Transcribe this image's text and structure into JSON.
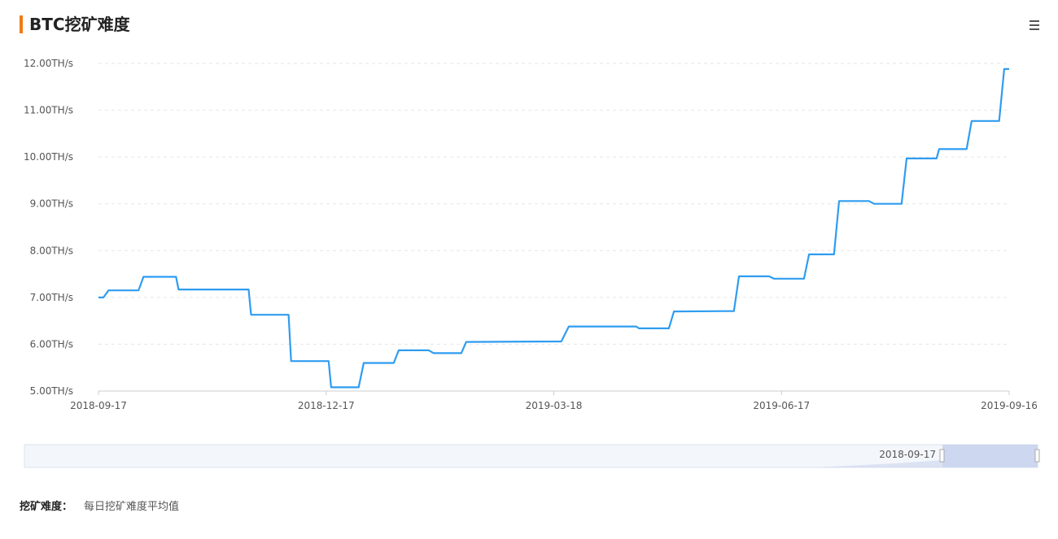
{
  "chart_data": {
    "type": "line",
    "title": "BTC挖矿难度",
    "x": [
      "2018-09-17",
      "2018-09-19",
      "2018-09-21",
      "2018-10-03",
      "2018-10-05",
      "2018-10-18",
      "2018-10-19",
      "2018-11-16",
      "2018-11-17",
      "2018-12-02",
      "2018-12-03",
      "2018-12-18",
      "2018-12-19",
      "2018-12-30",
      "2019-01-01",
      "2019-01-13",
      "2019-01-15",
      "2019-01-27",
      "2019-01-29",
      "2019-02-09",
      "2019-02-11",
      "2019-03-21",
      "2019-03-24",
      "2019-04-20",
      "2019-04-21",
      "2019-05-03",
      "2019-05-05",
      "2019-05-29",
      "2019-05-31",
      "2019-06-12",
      "2019-06-14",
      "2019-06-26",
      "2019-06-28",
      "2019-07-08",
      "2019-07-10",
      "2019-07-22",
      "2019-07-24",
      "2019-08-04",
      "2019-08-06",
      "2019-08-18",
      "2019-08-19",
      "2019-08-30",
      "2019-09-01",
      "2019-09-12",
      "2019-09-14",
      "2019-09-16"
    ],
    "values": [
      7.0,
      7.0,
      7.15,
      7.15,
      7.44,
      7.44,
      7.17,
      7.17,
      6.63,
      6.63,
      5.64,
      5.64,
      5.08,
      5.08,
      5.6,
      5.6,
      5.87,
      5.87,
      5.81,
      5.81,
      6.05,
      6.06,
      6.38,
      6.38,
      6.34,
      6.34,
      6.7,
      6.71,
      7.45,
      7.45,
      7.4,
      7.4,
      7.92,
      7.92,
      9.06,
      9.06,
      9.0,
      9.0,
      9.97,
      9.97,
      10.17,
      10.17,
      10.77,
      10.77,
      11.88,
      11.88
    ],
    "color": "#2f9cf0",
    "xlim": [
      "2018-09-17",
      "2019-09-16"
    ],
    "xticks": [
      "2018-09-17",
      "2018-12-17",
      "2019-03-18",
      "2019-06-17",
      "2019-09-16"
    ],
    "ylim": [
      5,
      12
    ],
    "yticks": [
      {
        "value": 5,
        "label": "5.00TH/s"
      },
      {
        "value": 6,
        "label": "6.00TH/s"
      },
      {
        "value": 7,
        "label": "7.00TH/s"
      },
      {
        "value": 8,
        "label": "8.00TH/s"
      },
      {
        "value": 9,
        "label": "9.00TH/s"
      },
      {
        "value": 10,
        "label": "10.00TH/s"
      },
      {
        "value": 11,
        "label": "11.00TH/s"
      },
      {
        "value": 12,
        "label": "12.00TH/s"
      }
    ],
    "grid": true,
    "zoom_label": "2018-09-17",
    "footnote_label": "挖矿难度：",
    "footnote_text": "每日挖矿难度平均值"
  }
}
